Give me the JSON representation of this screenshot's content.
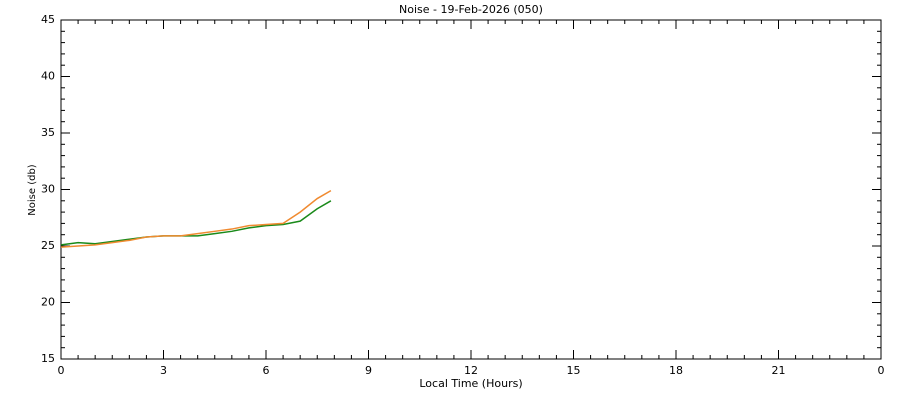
{
  "chart_data": {
    "type": "line",
    "title": "Noise - 19-Feb-2026 (050)",
    "x_label": "Local Time (Hours)",
    "y_label": "Noise (db)",
    "x": [
      0,
      0.5,
      1,
      1.5,
      2,
      2.5,
      3,
      3.5,
      4,
      4.5,
      5,
      5.5,
      6,
      6.5,
      7,
      7.5,
      7.9
    ],
    "series": [
      {
        "color": "#1a8a1a",
        "values": [
          25.1,
          25.3,
          25.2,
          25.4,
          25.6,
          25.8,
          25.9,
          25.9,
          25.9,
          26.1,
          26.3,
          26.6,
          26.8,
          26.9,
          27.2,
          28.3,
          29.0
        ]
      },
      {
        "color": "#f08a30",
        "values": [
          24.9,
          25.0,
          25.1,
          25.3,
          25.5,
          25.8,
          25.9,
          25.9,
          26.1,
          26.3,
          26.5,
          26.8,
          26.9,
          27.0,
          28.0,
          29.2,
          29.9
        ]
      }
    ],
    "xlim": [
      0,
      24
    ],
    "xticks": [
      0,
      3,
      6,
      9,
      12,
      15,
      18,
      21,
      {
        "value": 24,
        "label": "0"
      }
    ],
    "x_minor_step": 0.5,
    "ylim": [
      15,
      45
    ],
    "yticks": [
      15,
      20,
      25,
      30,
      35,
      40,
      45
    ],
    "y_minor_step": 1
  }
}
